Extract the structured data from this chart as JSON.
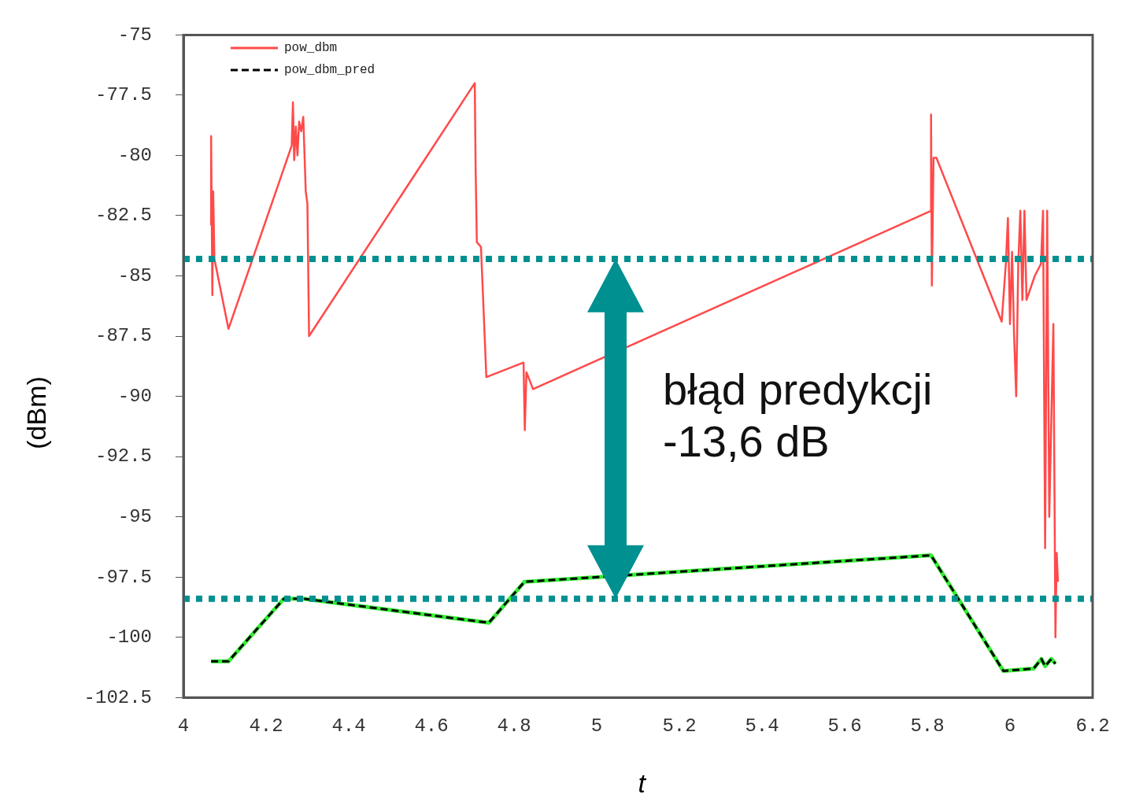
{
  "chart_data": {
    "type": "line",
    "xlabel": "t",
    "ylabel": "(dBm)",
    "xlim": [
      4,
      6.2
    ],
    "xticks": [
      4,
      4.2,
      4.4,
      4.6,
      4.8,
      5,
      5.2,
      5.4,
      5.6,
      5.8,
      6,
      6.2
    ],
    "ylim": [
      -102.5,
      -75
    ],
    "yticks": [
      -102.5,
      -100,
      -97.5,
      -95,
      -92.5,
      -90,
      -87.5,
      -85,
      -82.5,
      -80,
      -77.5,
      -75
    ],
    "grid": false,
    "legend": "top left",
    "marker": "none",
    "series": [
      {
        "name": "pow_dbm",
        "color": "#ff4a4a",
        "line_style": "solid",
        "x": [
          4.067,
          4.067,
          4.07,
          4.072,
          4.075,
          4.109,
          4.262,
          4.265,
          4.268,
          4.272,
          4.276,
          4.28,
          4.285,
          4.29,
          4.296,
          4.3,
          4.304,
          4.705,
          4.707,
          4.71,
          4.72,
          4.733,
          4.823,
          4.826,
          4.83,
          4.846,
          5.809,
          5.809,
          5.811,
          5.815,
          5.822,
          5.98,
          5.99,
          5.995,
          6.0,
          6.005,
          6.01,
          6.015,
          6.02,
          6.025,
          6.03,
          6.035,
          6.04,
          6.06,
          6.075,
          6.08,
          6.085,
          6.09,
          6.095,
          6.105,
          6.11,
          6.113,
          6.116
        ],
        "values": [
          -82.9,
          -79.2,
          -85.8,
          -81.5,
          -84.3,
          -87.2,
          -79.6,
          -77.8,
          -80.2,
          -78.8,
          -80.0,
          -78.6,
          -79.0,
          -78.4,
          -81.5,
          -82.0,
          -87.5,
          -77.0,
          -80.5,
          -83.6,
          -83.8,
          -89.2,
          -88.6,
          -91.4,
          -89.0,
          -89.7,
          -82.3,
          -78.3,
          -85.4,
          -80.1,
          -80.1,
          -86.9,
          -84.5,
          -82.6,
          -87.0,
          -84.0,
          -87.5,
          -90.0,
          -84.5,
          -82.3,
          -86.0,
          -82.3,
          -86.0,
          -85.0,
          -84.5,
          -82.3,
          -96.3,
          -82.3,
          -95.0,
          -87.0,
          -100.0,
          -96.5,
          -97.7
        ]
      },
      {
        "name": "pow_dbm_pred",
        "color": "#000000",
        "line_style": "dashed",
        "x": [
          4.067,
          4.109,
          4.243,
          4.29,
          4.739,
          4.825,
          5.809,
          5.984,
          6.057,
          6.076,
          6.085,
          6.1,
          6.11
        ],
        "values": [
          -101.0,
          -101.0,
          -98.4,
          -98.4,
          -99.4,
          -97.7,
          -96.6,
          -101.4,
          -101.3,
          -100.9,
          -101.2,
          -100.9,
          -101.1
        ]
      },
      {
        "color": "#33ee33",
        "line_style": "solid",
        "x": [
          4.067,
          4.109,
          4.243,
          4.29,
          4.739,
          4.825,
          5.809,
          5.984,
          6.057,
          6.076,
          6.085,
          6.1,
          6.11
        ],
        "values": [
          -101.0,
          -101.0,
          -98.4,
          -98.4,
          -99.4,
          -97.7,
          -96.6,
          -101.4,
          -101.3,
          -100.9,
          -101.2,
          -100.9,
          -101.1
        ]
      }
    ],
    "ref_lines": [
      {
        "axis": "y",
        "value": -84.3,
        "color": "#009090",
        "line_style": "dotted"
      },
      {
        "axis": "y",
        "value": -98.4,
        "color": "#009090",
        "line_style": "dotted"
      }
    ],
    "annotations": [
      "błąd predykcji -13,6 dB"
    ]
  }
}
